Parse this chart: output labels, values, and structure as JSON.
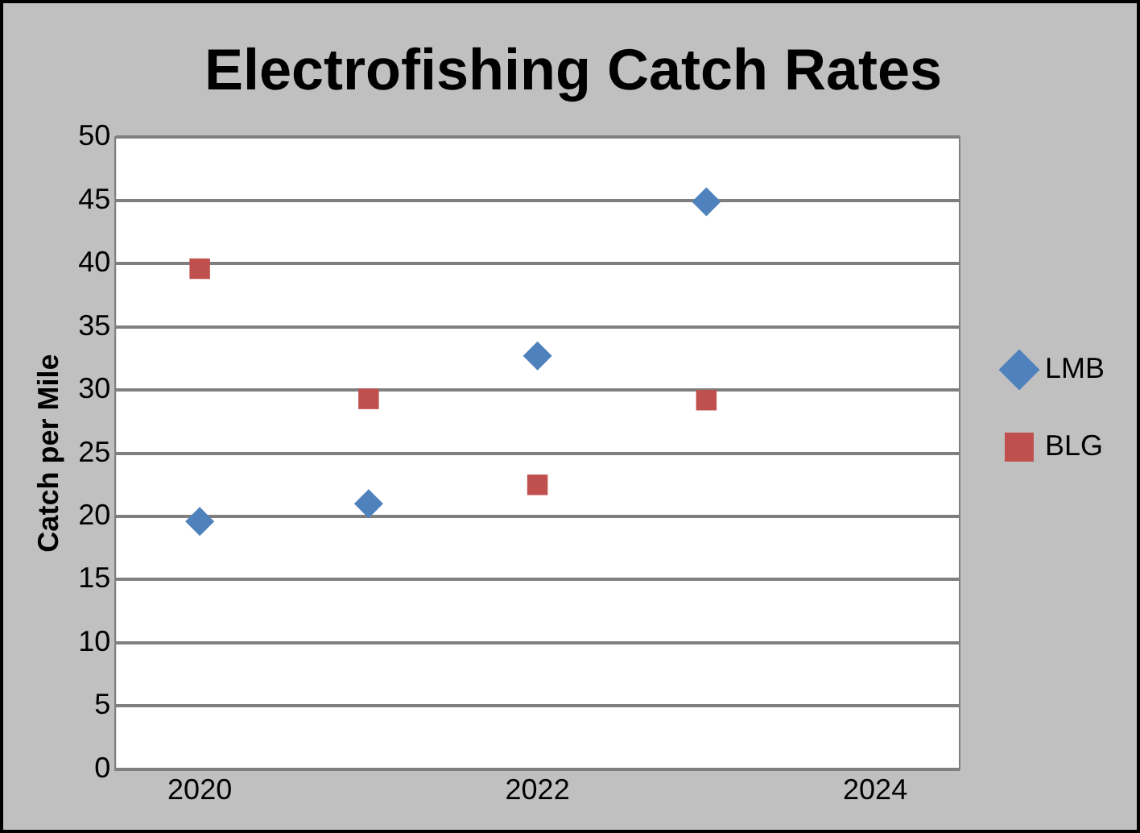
{
  "chart_data": {
    "type": "scatter",
    "title": "Electrofishing Catch Rates",
    "ylabel": "Catch per Mile",
    "x": [
      2020,
      2021,
      2022,
      2023
    ],
    "series": [
      {
        "name": "LMB",
        "color": "#4f81bd",
        "marker": "diamond",
        "values": [
          19.6,
          21,
          32.7,
          44.9
        ]
      },
      {
        "name": "BLG",
        "color": "#c0504d",
        "marker": "square",
        "values": [
          39.6,
          29.3,
          22.5,
          29.2
        ]
      }
    ],
    "xlim": [
      2019.5,
      2024.5
    ],
    "xticks": [
      2020,
      2022,
      2024
    ],
    "ylim": [
      0,
      50
    ],
    "yticks": [
      0,
      5,
      10,
      15,
      20,
      25,
      30,
      35,
      40,
      45,
      50
    ],
    "grid": "y",
    "legend": "right"
  }
}
